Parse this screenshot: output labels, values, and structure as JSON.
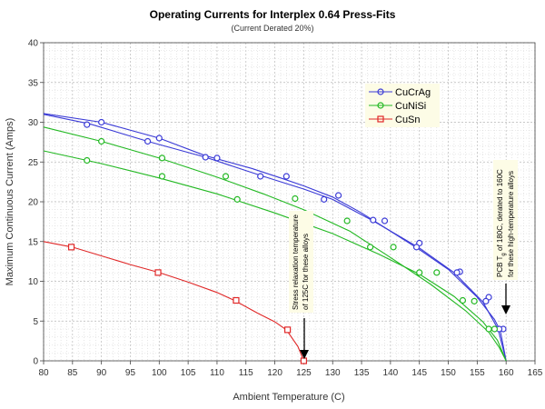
{
  "chart_data": {
    "type": "line",
    "title": "Operating Currents for Interplex 0.64 Press-Fits",
    "subtitle": "(Current Derated 20%)",
    "xlabel": "Ambient Temperature (C)",
    "ylabel": "Maximum Continuous Current (Amps)",
    "xlim": [
      80,
      165
    ],
    "ylim": [
      0,
      40
    ],
    "xticks": [
      80,
      85,
      90,
      95,
      100,
      105,
      110,
      115,
      120,
      125,
      130,
      135,
      140,
      145,
      150,
      155,
      160,
      165
    ],
    "yticks": [
      0,
      5,
      10,
      15,
      20,
      25,
      30,
      35,
      40
    ],
    "grid": true,
    "legend_position": "top-right",
    "series": [
      {
        "name": "CuCrAg",
        "color": "#3a3ad6",
        "marker": "circle",
        "x": [
          80,
          90,
          100,
          108,
          116,
          121,
          125,
          130,
          135,
          140,
          145,
          150,
          155,
          158,
          159,
          160
        ],
        "y": [
          31.1,
          30.0,
          28.0,
          25.8,
          24.2,
          23.0,
          22.0,
          20.6,
          18.6,
          16.3,
          14.0,
          11.5,
          8.0,
          5.2,
          3.8,
          0.0
        ],
        "markers_x": [
          90,
          100,
          110,
          122,
          131,
          139,
          145,
          152,
          157,
          159.5
        ],
        "markers_y": [
          30.0,
          28.0,
          25.5,
          23.2,
          20.8,
          17.6,
          14.8,
          11.2,
          8.0,
          4.0
        ]
      },
      {
        "name": "CuCrAg",
        "color": "#3a3ad6",
        "marker": "circle",
        "legend": false,
        "x": [
          80,
          88,
          98,
          108,
          118,
          125,
          130,
          137,
          145,
          151,
          156,
          158.6,
          160
        ],
        "y": [
          31.0,
          29.8,
          27.6,
          25.6,
          23.2,
          21.6,
          20.3,
          17.6,
          14.2,
          11.1,
          7.4,
          4.0,
          0.0
        ],
        "markers_x": [
          87.5,
          98,
          108,
          117.5,
          128.5,
          137,
          144.5,
          151.5,
          156.5,
          158.8
        ],
        "markers_y": [
          29.7,
          27.6,
          25.6,
          23.2,
          20.3,
          17.7,
          14.3,
          11.1,
          7.5,
          4.0
        ]
      },
      {
        "name": "CuNiSi",
        "color": "#22b822",
        "marker": "circle",
        "x": [
          80,
          90,
          100,
          110,
          118,
          125,
          133,
          140,
          147,
          153,
          157,
          158.8,
          160
        ],
        "y": [
          29.4,
          27.6,
          25.5,
          23.1,
          21.0,
          19.0,
          16.3,
          13.0,
          9.6,
          6.3,
          3.6,
          1.7,
          0.0
        ],
        "markers_x": [
          90,
          100.5,
          111.5,
          123.5,
          132.5,
          140.5,
          148,
          154.5,
          158
        ],
        "markers_y": [
          27.6,
          25.5,
          23.2,
          20.4,
          17.6,
          14.3,
          11.1,
          7.5,
          4.0
        ]
      },
      {
        "name": "CuNiSi",
        "color": "#22b822",
        "marker": "circle",
        "legend": false,
        "x": [
          80,
          90,
          100,
          110,
          120,
          130,
          138,
          145,
          151,
          156,
          158.5,
          160
        ],
        "y": [
          26.4,
          24.8,
          23.0,
          21.0,
          18.6,
          16.0,
          13.4,
          10.9,
          8.1,
          4.9,
          2.6,
          0.0
        ],
        "markers_x": [
          87.5,
          100.5,
          113.5,
          136.5,
          145,
          152.5,
          157
        ],
        "markers_y": [
          25.2,
          23.2,
          20.3,
          14.3,
          11.1,
          7.6,
          4.0
        ]
      },
      {
        "name": "CuSn",
        "color": "#e02828",
        "marker": "square",
        "x": [
          80,
          85,
          90,
          95,
          100,
          105,
          110,
          113,
          117,
          120,
          122,
          124,
          125
        ],
        "y": [
          15.0,
          14.3,
          13.2,
          12.1,
          11.1,
          9.9,
          8.6,
          7.6,
          6.0,
          4.9,
          3.9,
          1.8,
          0.0
        ],
        "markers_x": [
          84.8,
          99.8,
          113.3,
          122.2,
          125
        ],
        "markers_y": [
          14.3,
          11.1,
          7.6,
          3.9,
          0.0
        ]
      }
    ],
    "annotations": [
      {
        "lines": [
          "Stress relaxation temperature",
          "of 125C for these alloys"
        ],
        "arrow_to": [
          125,
          0
        ]
      },
      {
        "lines": [
          "PCB  T",
          "g",
          " of 180C, derated to 160C",
          "for these high-temperature alloys"
        ],
        "arrow_to": [
          160,
          0
        ]
      }
    ]
  }
}
